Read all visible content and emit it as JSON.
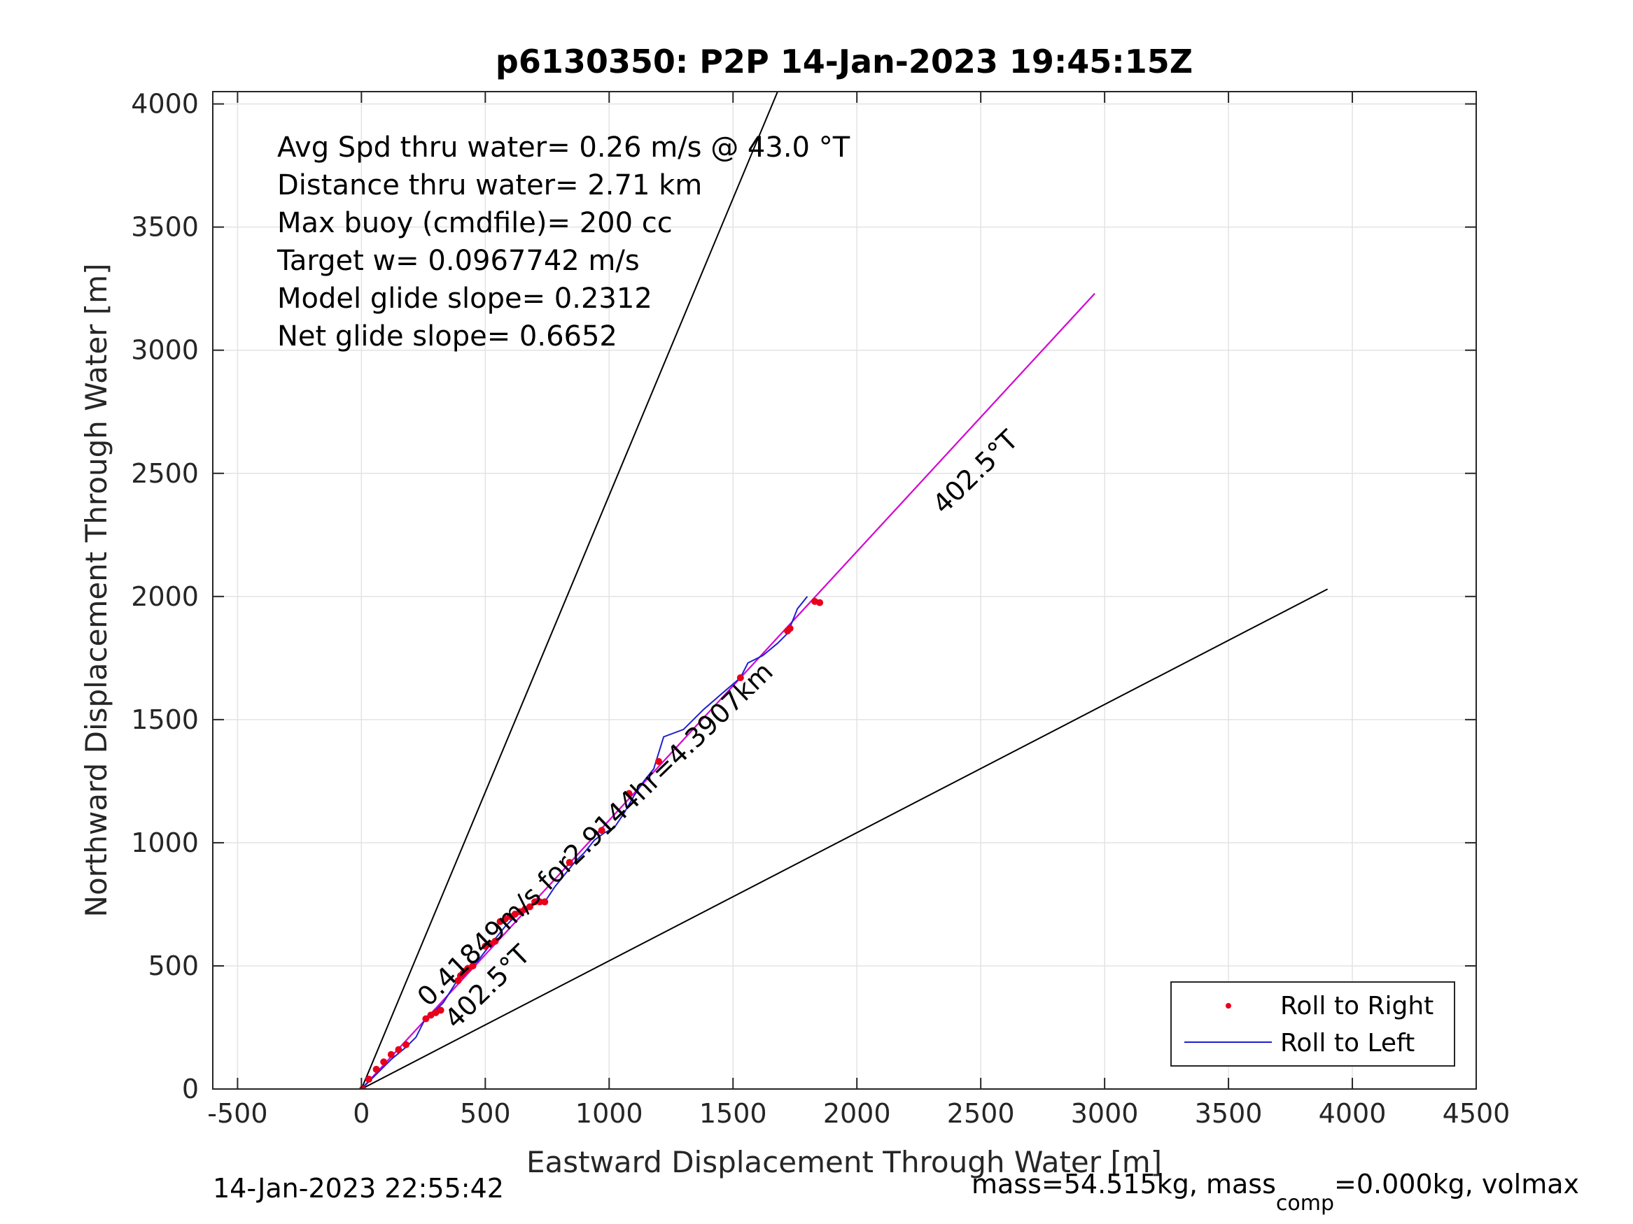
{
  "chart_data": {
    "type": "line",
    "title": "p6130350: P2P 14-Jan-2023 19:45:15Z",
    "xlabel": "Eastward Displacement Through Water [m]",
    "ylabel": "Northward Displacement Through Water [m]",
    "xlim": [
      -600,
      4500
    ],
    "ylim": [
      0,
      4050
    ],
    "xticks": [
      -500,
      0,
      500,
      1000,
      1500,
      2000,
      2500,
      3000,
      3500,
      4000,
      4500
    ],
    "yticks": [
      0,
      500,
      1000,
      1500,
      2000,
      2500,
      3000,
      3500,
      4000
    ],
    "grid": true,
    "legend_position": "bottom-right",
    "info_lines": [
      "Avg Spd thru water=  0.26 m/s @  43.0 °T",
      "Distance thru water=  2.71 km",
      "Max buoy (cmdfile)= 200 cc",
      "Target w= 0.0967742 m/s",
      "Model glide slope= 0.2312",
      "Net glide slope= 0.6652"
    ],
    "annotations": [
      {
        "text": "0.41849m/s for2.9144hr=4.3907km",
        "x": 270,
        "y": 330,
        "angle_deg": 44
      },
      {
        "text": "402.5°T",
        "x": 380,
        "y": 240,
        "angle_deg": 44
      },
      {
        "text": "402.5°T",
        "x": 2350,
        "y": 2330,
        "angle_deg": 44
      }
    ],
    "reference_lines": [
      {
        "color": "#000000",
        "x": [
          0,
          1680
        ],
        "y": [
          0,
          4050
        ]
      },
      {
        "color": "#000000",
        "x": [
          0,
          3900
        ],
        "y": [
          0,
          2030
        ]
      },
      {
        "color": "#000000",
        "x": [
          0,
          2960
        ],
        "y": [
          0,
          3230
        ]
      },
      {
        "color": "#e000e0",
        "x": [
          0,
          2960
        ],
        "y": [
          0,
          3230
        ]
      }
    ],
    "series": [
      {
        "name": "Roll to Right",
        "kind": "scatter",
        "color": "#e8001c",
        "x": [
          5,
          30,
          60,
          90,
          120,
          150,
          180,
          260,
          280,
          300,
          320,
          390,
          400,
          410,
          420,
          430,
          450,
          500,
          520,
          540,
          560,
          580,
          600,
          620,
          640,
          660,
          680,
          700,
          720,
          740,
          840,
          970,
          1080,
          1200,
          1530,
          1720,
          1730,
          1830,
          1850
        ],
        "y": [
          0,
          40,
          80,
          110,
          140,
          160,
          180,
          285,
          300,
          310,
          320,
          440,
          460,
          470,
          480,
          490,
          500,
          580,
          590,
          600,
          680,
          690,
          700,
          710,
          720,
          730,
          740,
          760,
          760,
          760,
          920,
          1050,
          1200,
          1330,
          1670,
          1860,
          1870,
          1980,
          1975
        ]
      },
      {
        "name": "Roll to Left",
        "kind": "line",
        "color": "#1f1fcf",
        "x": [
          0,
          60,
          120,
          180,
          220,
          260,
          300,
          330,
          380,
          420,
          470,
          500,
          540,
          580,
          620,
          660,
          700,
          740,
          780,
          820,
          860,
          900,
          940,
          980,
          1020,
          1060,
          1100,
          1140,
          1180,
          1220,
          1300,
          1380,
          1460,
          1530,
          1560,
          1620,
          1680,
          1720,
          1760,
          1800
        ],
        "y": [
          0,
          60,
          120,
          170,
          210,
          290,
          320,
          350,
          430,
          480,
          520,
          560,
          610,
          660,
          700,
          730,
          760,
          760,
          820,
          870,
          920,
          960,
          1010,
          1040,
          1060,
          1120,
          1190,
          1250,
          1300,
          1430,
          1460,
          1540,
          1610,
          1670,
          1730,
          1760,
          1810,
          1850,
          1950,
          2000
        ]
      }
    ]
  },
  "footer": {
    "timestamp": "14-Jan-2023 22:55:42",
    "mass_text_1": "mass=54.515kg, mass",
    "mass_sub": "comp",
    "mass_text_2": "=0.000kg, volmax"
  }
}
